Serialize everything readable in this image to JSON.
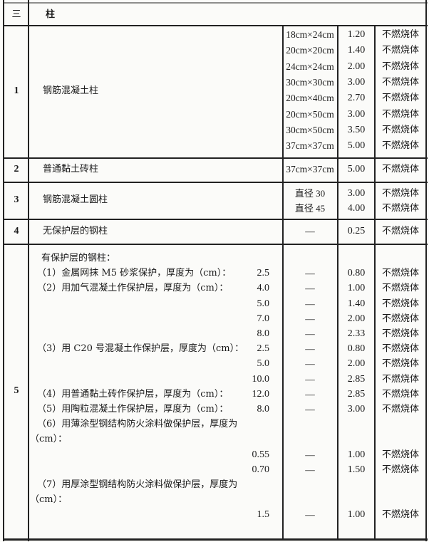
{
  "section": {
    "number": "三",
    "title": "柱"
  },
  "rows": [
    {
      "number": "1",
      "name": "钢筋混凝土柱",
      "lines": [
        {
          "size": "18cm×24cm",
          "limit": "1.20",
          "class": "不燃烧体"
        },
        {
          "size": "20cm×20cm",
          "limit": "1.40",
          "class": "不燃烧体"
        },
        {
          "size": "24cm×24cm",
          "limit": "2.00",
          "class": "不燃烧体"
        },
        {
          "size": "30cm×30cm",
          "limit": "3.00",
          "class": "不燃烧体"
        },
        {
          "size": "20cm×40cm",
          "limit": "2.70",
          "class": "不燃烧体"
        },
        {
          "size": "20cm×50cm",
          "limit": "3.00",
          "class": "不燃烧体"
        },
        {
          "size": "30cm×50cm",
          "limit": "3.50",
          "class": "不燃烧体"
        },
        {
          "size": "37cm×37cm",
          "limit": "5.00",
          "class": "不燃烧体"
        }
      ]
    },
    {
      "number": "2",
      "name": "普通黏土砖柱",
      "lines": [
        {
          "size": "37cm×37cm",
          "limit": "5.00",
          "class": "不燃烧体"
        }
      ]
    },
    {
      "number": "3",
      "name": "钢筋混凝土圆柱",
      "lines": [
        {
          "size": "直径 30",
          "limit": "3.00",
          "class": "不燃烧体"
        },
        {
          "size": "直径 45",
          "limit": "4.00",
          "class": "不燃烧体"
        }
      ]
    },
    {
      "number": "4",
      "name": "无保护层的钢柱",
      "lines": [
        {
          "size": "—",
          "limit": "0.25",
          "class": "不燃烧体"
        }
      ]
    },
    {
      "number": "5",
      "name": "有保护层的钢柱：",
      "lines": [
        {
          "text": "（1）金属网抹 M5 砂浆保护，厚度为（cm）：",
          "value": "2.5",
          "size": "—",
          "limit": "0.80",
          "class": "不燃烧体"
        },
        {
          "text": "（2）用加气混凝土作保护层，厚度为（cm）：",
          "value": "4.0",
          "size": "—",
          "limit": "1.00",
          "class": "不燃烧体"
        },
        {
          "value": "5.0",
          "size": "—",
          "limit": "1.40",
          "class": "不燃烧体"
        },
        {
          "value": "7.0",
          "size": "—",
          "limit": "2.00",
          "class": "不燃烧体"
        },
        {
          "value": "8.0",
          "size": "—",
          "limit": "2.33",
          "class": "不燃烧体"
        },
        {
          "text": "（3）用 C20 号混凝土作保护层，厚度为（cm）：",
          "value": "2.5",
          "size": "—",
          "limit": "0.80",
          "class": "不燃烧体"
        },
        {
          "value": "5.0",
          "size": "—",
          "limit": "2.00",
          "class": "不燃烧体"
        },
        {
          "value": "10.0",
          "size": "—",
          "limit": "2.85",
          "class": "不燃烧体"
        },
        {
          "text": "（4）用普通黏土砖作保护层，厚度为（cm）：",
          "value": "12.0",
          "size": "—",
          "limit": "2.85",
          "class": "不燃烧体"
        },
        {
          "text": "（5）用陶粒混凝土作保护层，厚度为（cm）：",
          "value": "8.0",
          "size": "—",
          "limit": "3.00",
          "class": "不燃烧体"
        },
        {
          "text": "（6）用薄涂型钢结构防火涂料做保护层，厚度为"
        },
        {
          "text": "（cm）：",
          "wrap": true
        },
        {
          "value": "0.55",
          "size": "—",
          "limit": "1.00",
          "class": "不燃烧体"
        },
        {
          "value": "0.70",
          "size": "—",
          "limit": "1.50",
          "class": "不燃烧体"
        },
        {
          "text": "（7）用厚涂型钢结构防火涂料做保护层，厚度为"
        },
        {
          "text": "（cm）：",
          "wrap": true
        },
        {
          "value": "1.5",
          "size": "—",
          "limit": "1.00",
          "class": "不燃烧体"
        }
      ]
    }
  ]
}
